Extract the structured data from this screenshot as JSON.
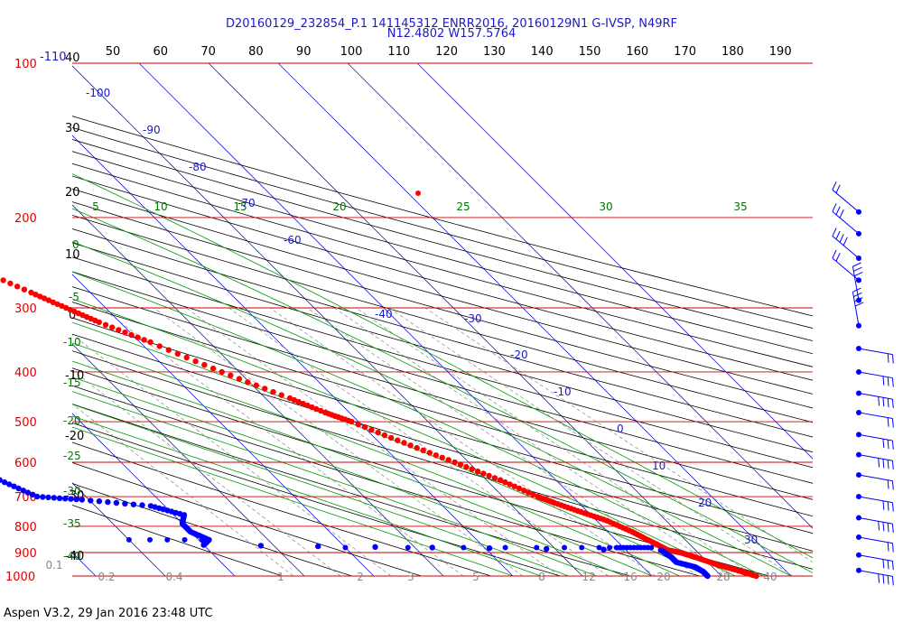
{
  "chart_data": {
    "type": "scatter",
    "title": "D20160129_232854_P.1 141145312 ENRR2016, 20160129N1 G-IVSP, N49RF",
    "subtitle": "N12.4802 W157.5764",
    "footer": "Aspen V3.2, 29 Jan 2016  23:48 UTC",
    "pressure_levels": [
      "100",
      "200",
      "300",
      "400",
      "500",
      "600",
      "700",
      "800",
      "900",
      "1000"
    ],
    "top_left_label": "-110",
    "pressure_values": [
      100,
      200,
      300,
      400,
      500,
      600,
      700,
      800,
      900,
      1000
    ],
    "top_axis_labels": [
      "50",
      "60",
      "70",
      "80",
      "90",
      "100",
      "110",
      "120",
      "130",
      "140",
      "150",
      "160",
      "170",
      "180",
      "190"
    ],
    "left_temp_labels": [
      "40",
      "30",
      "20",
      "10",
      "0",
      "-10",
      "-20",
      "-30",
      "-40"
    ],
    "mixing_ratio_labels": [
      "0.1",
      "0.2",
      "0.4",
      "1",
      "2",
      "3",
      "5",
      "8",
      "12",
      "16",
      "20",
      "28",
      "40"
    ],
    "theta_e_labels": [
      "5",
      "10",
      "15",
      "20",
      "25",
      "30",
      "35"
    ],
    "dry_adiabat_labels": [
      "0",
      "-5",
      "-10",
      "-15",
      "-20",
      "-25",
      "-30",
      "-35",
      "-40"
    ],
    "isotherm_labels": [
      "-100",
      "-90",
      "-80",
      "-70",
      "-60",
      "-40",
      "-30",
      "-20",
      "-10",
      "0",
      "10",
      "20",
      "30"
    ],
    "series": [
      {
        "name": "temperature",
        "color": "#ff0000",
        "points": [
          [
            167,
            -53.5
          ],
          [
            200,
            -49.2
          ],
          [
            220,
            -46.5
          ],
          [
            250,
            -43.0
          ],
          [
            280,
            -38.5
          ],
          [
            300,
            -35.7
          ],
          [
            320,
            -33.0
          ],
          [
            350,
            -28.5
          ],
          [
            400,
            -22.5
          ],
          [
            450,
            -16.5
          ],
          [
            480,
            -13.5
          ],
          [
            500,
            -11.0
          ],
          [
            550,
            -6.5
          ],
          [
            600,
            -2.0
          ],
          [
            650,
            2.0
          ],
          [
            700,
            5.0
          ],
          [
            720,
            6.5
          ],
          [
            750,
            9.0
          ],
          [
            780,
            11.5
          ],
          [
            820,
            13.5
          ],
          [
            860,
            15.0
          ],
          [
            890,
            16.0
          ],
          [
            900,
            17.5
          ],
          [
            920,
            19.0
          ],
          [
            950,
            21.0
          ],
          [
            980,
            23.5
          ],
          [
            1000,
            25.0
          ]
        ]
      },
      {
        "name": "dewpoint",
        "color": "#0000ff",
        "points": [
          [
            218,
            -62.0
          ],
          [
            240,
            -64.0
          ],
          [
            255,
            -61.0
          ],
          [
            265,
            -63.5
          ],
          [
            275,
            -62.0
          ],
          [
            283,
            -54.0
          ],
          [
            290,
            -50.0
          ],
          [
            300,
            -49.5
          ],
          [
            305,
            -56.0
          ],
          [
            308,
            -66.0
          ],
          [
            310,
            -80.0
          ],
          [
            315,
            -93.0
          ],
          [
            340,
            -91.0
          ],
          [
            370,
            -88.0
          ],
          [
            410,
            -83.0
          ],
          [
            440,
            -80.5
          ],
          [
            480,
            -80.5
          ],
          [
            520,
            -79.5
          ],
          [
            560,
            -75.0
          ],
          [
            600,
            -72.0
          ],
          [
            650,
            -70.0
          ],
          [
            700,
            -67.0
          ],
          [
            710,
            -61.0
          ],
          [
            730,
            -52.0
          ],
          [
            760,
            -48.5
          ],
          [
            790,
            -50.0
          ],
          [
            820,
            -50.0
          ],
          [
            850,
            -48.5
          ],
          [
            870,
            -50.0
          ],
          [
            890,
            15.0
          ],
          [
            920,
            15.5
          ],
          [
            940,
            15.5
          ],
          [
            960,
            17.5
          ],
          [
            980,
            18.0
          ],
          [
            1000,
            18.0
          ]
        ]
      },
      {
        "name": "dewpoint-scatter",
        "color": "#0000ff",
        "points": [
          [
            309,
            -88.5
          ],
          [
            309,
            -86.0
          ],
          [
            309,
            -83.5
          ],
          [
            309,
            -81.0
          ],
          [
            309,
            -78.0
          ],
          [
            309,
            -75.0
          ],
          [
            309,
            -71.0
          ],
          [
            309,
            -67.0
          ],
          [
            309,
            -63.5
          ],
          [
            309,
            -60.5
          ],
          [
            309,
            -58.5
          ],
          [
            850,
            -60.0
          ],
          [
            850,
            -57.0
          ],
          [
            850,
            -54.5
          ],
          [
            850,
            -52.0
          ],
          [
            850,
            -49.5
          ],
          [
            880,
            -30.0
          ],
          [
            880,
            -21.0
          ],
          [
            880,
            -13.0
          ],
          [
            880,
            -7.0
          ],
          [
            880,
            -2.5
          ],
          [
            880,
            1.5
          ],
          [
            880,
            4.0
          ],
          [
            880,
            6.5
          ],
          [
            880,
            8.0
          ],
          [
            880,
            9.0
          ],
          [
            880,
            9.5
          ],
          [
            880,
            10.0
          ],
          [
            880,
            10.5
          ],
          [
            880,
            11.0
          ],
          [
            880,
            11.5
          ],
          [
            880,
            12.0
          ],
          [
            880,
            12.5
          ],
          [
            880,
            13.0
          ],
          [
            880,
            13.5
          ],
          [
            880,
            14.0
          ]
        ]
      }
    ],
    "wind_barbs_pressures": [
      195,
      215,
      240,
      265,
      290,
      325,
      360,
      400,
      440,
      480,
      530,
      580,
      635,
      700,
      770,
      840,
      910,
      975
    ],
    "colors": {
      "isobar": "#cc0000",
      "isotherm": "#2020cc",
      "dry_adiabat": "#000000",
      "moist_adiabat": "#009900",
      "mixing_ratio": "#888888",
      "text_blue": "#1a1ac8"
    }
  }
}
